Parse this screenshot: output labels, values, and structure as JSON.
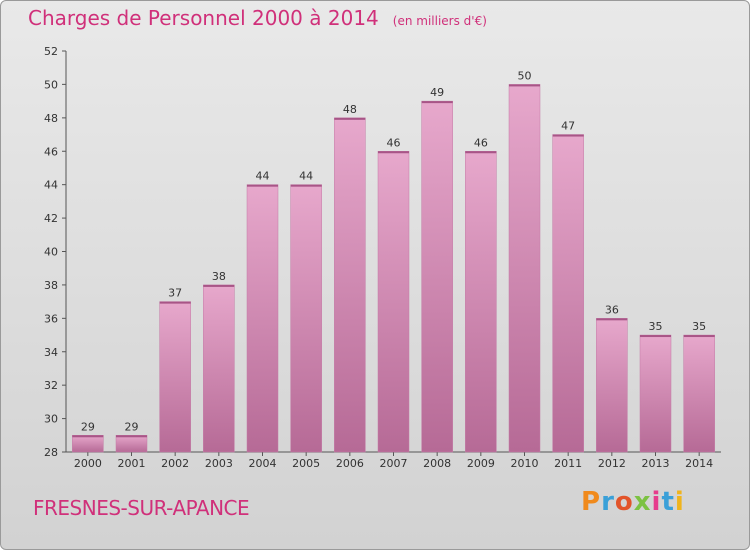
{
  "chart_data": {
    "type": "bar",
    "title": "Charges de Personnel 2000 à 2014",
    "subtitle": "(en milliers d'€)",
    "categories": [
      "2000",
      "2001",
      "2002",
      "2003",
      "2004",
      "2005",
      "2006",
      "2007",
      "2008",
      "2009",
      "2010",
      "2011",
      "2012",
      "2013",
      "2014"
    ],
    "values": [
      29,
      29,
      37,
      38,
      44,
      44,
      48,
      46,
      49,
      46,
      50,
      47,
      36,
      35,
      35
    ],
    "ylim": [
      28,
      52
    ],
    "yticks": [
      28,
      30,
      32,
      34,
      36,
      38,
      40,
      42,
      44,
      46,
      48,
      50,
      52
    ],
    "grid": false,
    "bar_color": "#d88bb5"
  },
  "footer": {
    "commune": "FRESNES-SUR-APANCE",
    "logo": "Proxiti"
  },
  "colors": {
    "title": "#d0307a",
    "logo_letters": [
      "#f08a1c",
      "#3aa0d8",
      "#e2542a",
      "#7cc242",
      "#e63c8c",
      "#3aa0d8",
      "#f0b41c"
    ]
  }
}
